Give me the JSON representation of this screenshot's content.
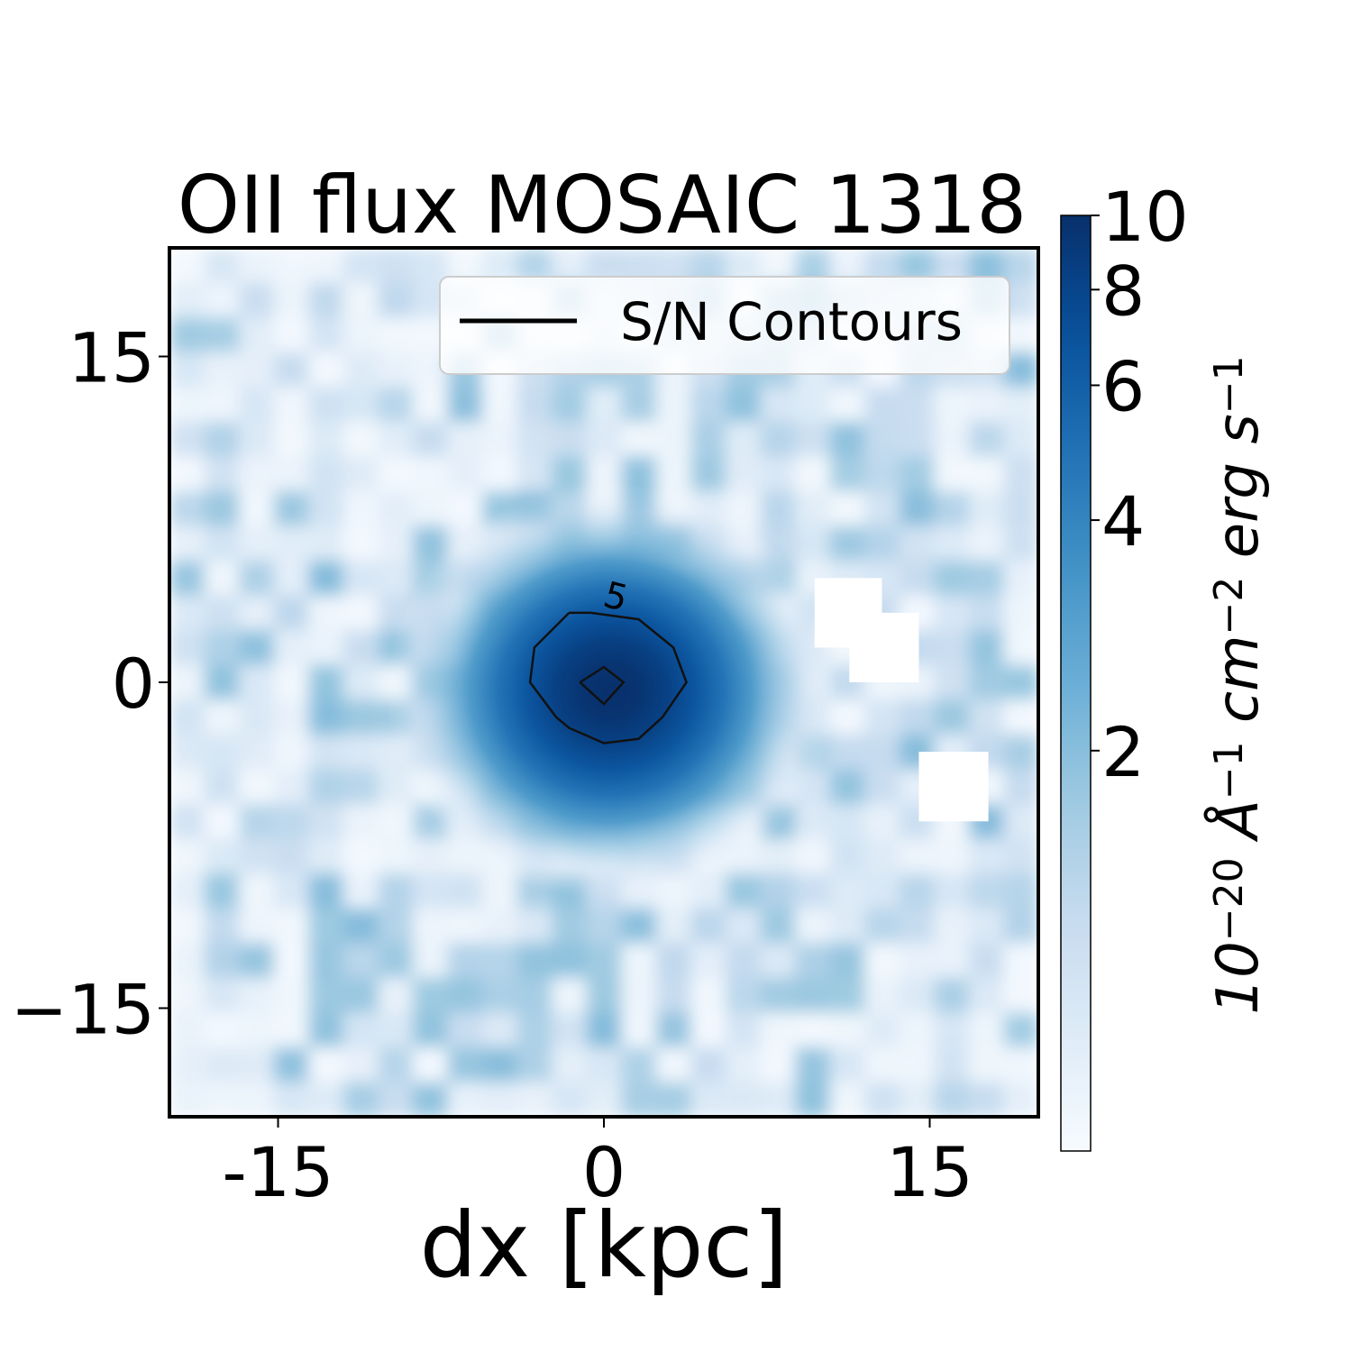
{
  "chart_data": {
    "type": "heatmap",
    "title": "OII flux MOSAIC 1318",
    "xlabel": "dx [kpc]",
    "ylabel": "",
    "xlim": [
      -20,
      20
    ],
    "ylim": [
      -20,
      20
    ],
    "x_ticks": [
      {
        "value": -15,
        "label": "-15"
      },
      {
        "value": 0,
        "label": "0"
      },
      {
        "value": 15,
        "label": "15"
      }
    ],
    "y_ticks": [
      {
        "value": 15,
        "label": "15"
      },
      {
        "value": 0,
        "label": "0"
      },
      {
        "value": -15,
        "label": "−15"
      }
    ],
    "colormap": "Blues",
    "colormap_colors": [
      "#f7fbff",
      "#deebf7",
      "#c6dbef",
      "#9ecae1",
      "#6baed6",
      "#4292c6",
      "#2171b5",
      "#08519c",
      "#08306b"
    ],
    "colorbar": {
      "scale": "log",
      "range": [
        0.6,
        10
      ],
      "ticks": [
        {
          "value": 2,
          "label": "2"
        },
        {
          "value": 4,
          "label": "4"
        },
        {
          "value": 6,
          "label": "6"
        },
        {
          "value": 8,
          "label": "8"
        },
        {
          "value": 10,
          "label": "10"
        }
      ],
      "label_parts": [
        {
          "text": "10"
        },
        {
          "text": "−20",
          "sup": true
        },
        {
          "text": " Å"
        },
        {
          "text": "−1",
          "sup": true
        },
        {
          "text": " cm"
        },
        {
          "text": "−2",
          "sup": true
        },
        {
          "text": " erg s"
        },
        {
          "text": "−1",
          "sup": true
        }
      ]
    },
    "source": {
      "x": 0,
      "y": 0,
      "peak": 10,
      "sigma_kpc": 4.0
    },
    "masked_regions": [
      {
        "x0": 9.7,
        "x1": 12.8,
        "y0": 1.6,
        "y1": 4.8
      },
      {
        "x0": 11.3,
        "x1": 14.5,
        "y0": 0.0,
        "y1": 3.2
      },
      {
        "x0": 14.5,
        "x1": 17.7,
        "y0": -6.4,
        "y1": -3.2
      }
    ],
    "contours": [
      {
        "level": "5",
        "label": "5",
        "label_pos": [
          0.4,
          3.4
        ],
        "points": [
          [
            -1.6,
            3.2
          ],
          [
            -3.2,
            1.6
          ],
          [
            -3.4,
            0.0
          ],
          [
            -2.2,
            -1.6
          ],
          [
            -1.6,
            -2.1
          ],
          [
            0.0,
            -2.8
          ],
          [
            1.6,
            -2.6
          ],
          [
            2.7,
            -1.6
          ],
          [
            3.8,
            0.0
          ],
          [
            3.2,
            1.6
          ],
          [
            1.6,
            2.9
          ],
          [
            -0.6,
            3.2
          ],
          [
            -1.6,
            3.2
          ]
        ]
      },
      {
        "level": "inner",
        "label": "",
        "points": [
          [
            -1.1,
            0.0
          ],
          [
            0.0,
            0.7
          ],
          [
            0.9,
            0.0
          ],
          [
            0.0,
            -1.0
          ],
          [
            -1.1,
            0.0
          ]
        ]
      }
    ],
    "legend": {
      "entries": [
        {
          "label": "S/N Contours",
          "style": "line",
          "color": "#000000"
        }
      ],
      "position": "upper right"
    }
  }
}
